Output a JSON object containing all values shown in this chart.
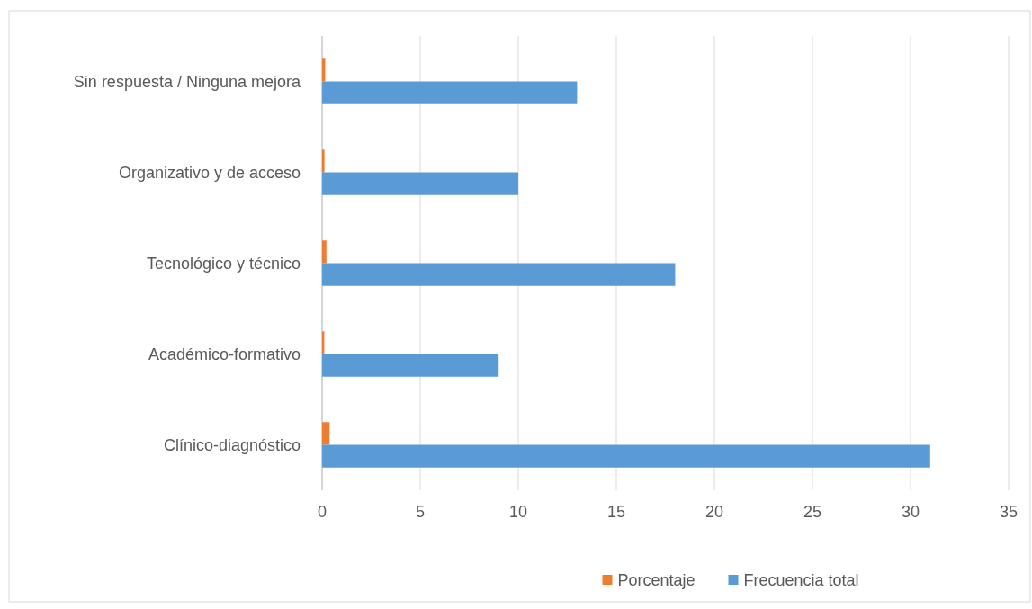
{
  "chart_data": {
    "type": "bar",
    "orientation": "horizontal",
    "categories": [
      "Sin respuesta / Ninguna mejora",
      "Organizativo y de acceso",
      "Tecnológico y técnico",
      "Académico-formativo",
      "Clínico-diagnóstico"
    ],
    "series": [
      {
        "name": "Porcentaje",
        "color": "#ed7d31",
        "values": [
          0.16,
          0.12,
          0.22,
          0.11,
          0.38
        ]
      },
      {
        "name": "Frecuencia total",
        "color": "#5b9bd5",
        "values": [
          13,
          10,
          18,
          9,
          31
        ]
      }
    ],
    "xlim": [
      0,
      35
    ],
    "xticks": [
      0,
      5,
      10,
      15,
      20,
      25,
      30,
      35
    ],
    "grid": "x",
    "legend": "bottom"
  }
}
